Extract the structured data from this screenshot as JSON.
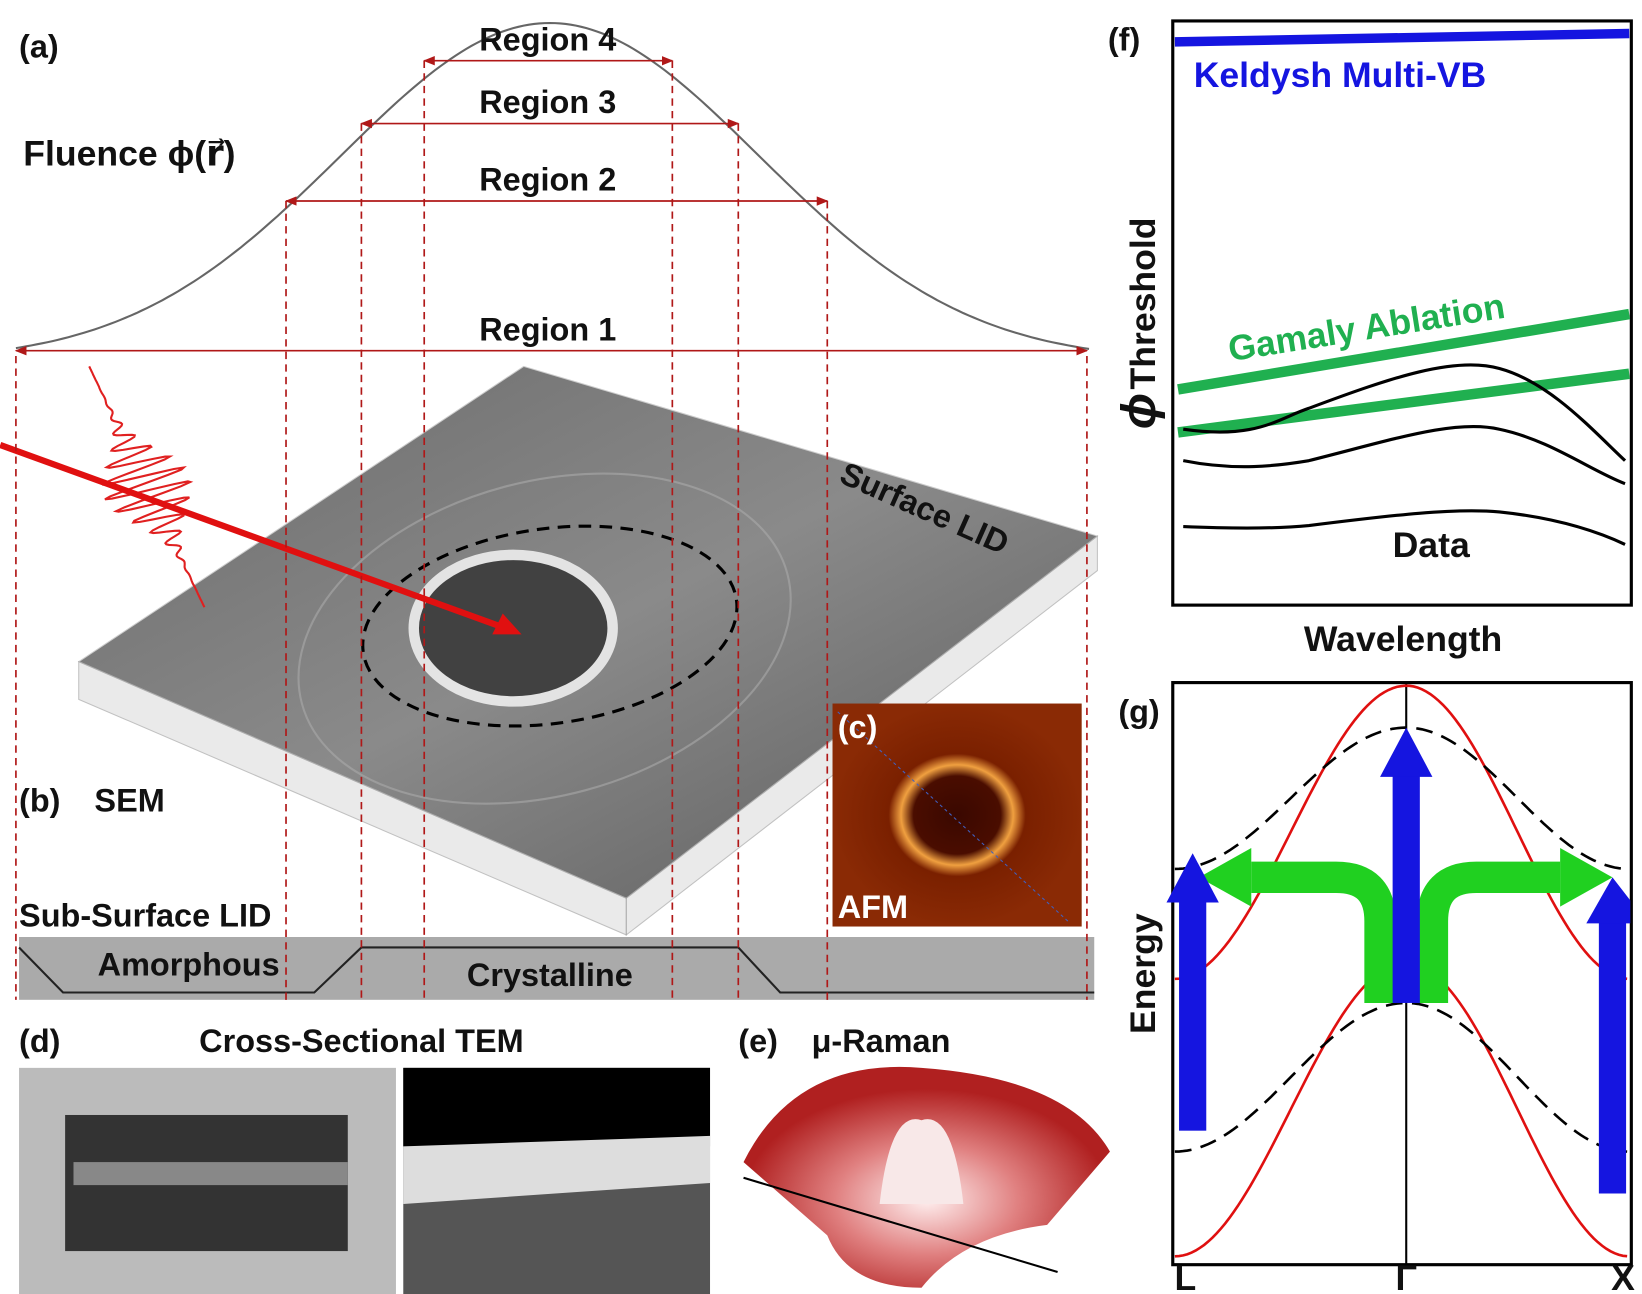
{
  "panel_a": {
    "label": "(a)",
    "fluence": "Fluence ϕ(r⃗)",
    "regions": [
      "Region 4",
      "Region 3",
      "Region 2",
      "Region 1"
    ]
  },
  "panel_b": {
    "label": "(b)",
    "title": "SEM",
    "surface": "Surface LID",
    "subsurface": "Sub-Surface LID",
    "amorphous": "Amorphous",
    "crystalline": "Crystalline"
  },
  "panel_c": {
    "label": "(c)",
    "title": "AFM"
  },
  "panel_d": {
    "label": "(d)",
    "title": "Cross-Sectional TEM"
  },
  "panel_e": {
    "label": "(e)",
    "title": "μ-Raman"
  },
  "panel_f": {
    "label": "(f)",
    "keldysh": "Keldysh Multi-VB",
    "gamaly": "Gamaly Ablation",
    "phi": "ϕ",
    "threshold": "Threshold",
    "data": "Data",
    "xlabel": "Wavelength"
  },
  "panel_g": {
    "label": "(g)",
    "ylabel": "Energy",
    "points": [
      "L",
      "Γ",
      "X"
    ]
  }
}
